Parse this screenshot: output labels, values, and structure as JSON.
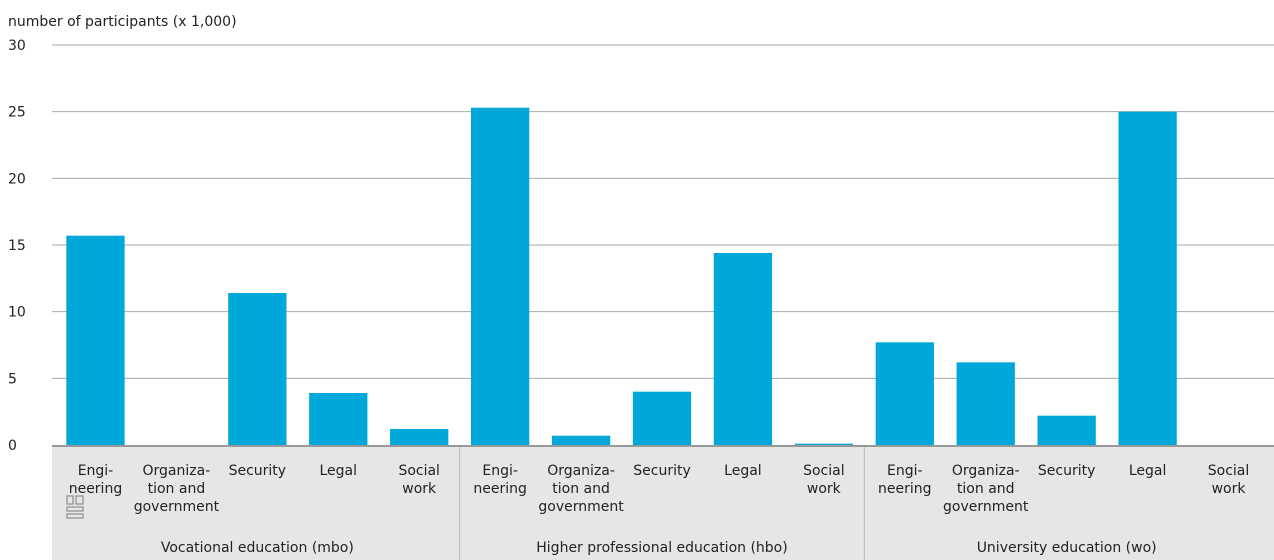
{
  "colors": {
    "bar": "#00a8d9",
    "grid": "#aaaaaa",
    "axis_panel": "#e6e6e6",
    "axis_line": "#999999",
    "divider": "#bbbbbb",
    "logo": "#999999"
  },
  "logo_text": "cbs",
  "chart_data": {
    "type": "bar",
    "title": "",
    "ylabel": "number of participants (x 1,000)",
    "ylim": [
      0,
      30
    ],
    "yticks": [
      0,
      5,
      10,
      15,
      20,
      25,
      30
    ],
    "grid": true,
    "groups": [
      {
        "label": "Vocational education (mbo)",
        "categories": [
          [
            "Engi-",
            "neering"
          ],
          [
            "Organiza-",
            "tion and",
            "government"
          ],
          [
            "Security"
          ],
          [
            "Legal"
          ],
          [
            "Social",
            "work"
          ]
        ],
        "values": [
          15.7,
          0,
          11.4,
          3.9,
          1.2
        ]
      },
      {
        "label": "Higher professional education (hbo)",
        "categories": [
          [
            "Engi-",
            "neering"
          ],
          [
            "Organiza-",
            "tion and",
            "government"
          ],
          [
            "Security"
          ],
          [
            "Legal"
          ],
          [
            "Social",
            "work"
          ]
        ],
        "values": [
          25.3,
          0.7,
          4.0,
          14.4,
          0.1
        ]
      },
      {
        "label": "University education (wo)",
        "categories": [
          [
            "Engi-",
            "neering"
          ],
          [
            "Organiza-",
            "tion and",
            "government"
          ],
          [
            "Security"
          ],
          [
            "Legal"
          ],
          [
            "Social",
            "work"
          ]
        ],
        "values": [
          7.7,
          6.2,
          2.2,
          25.0,
          0
        ]
      }
    ]
  }
}
